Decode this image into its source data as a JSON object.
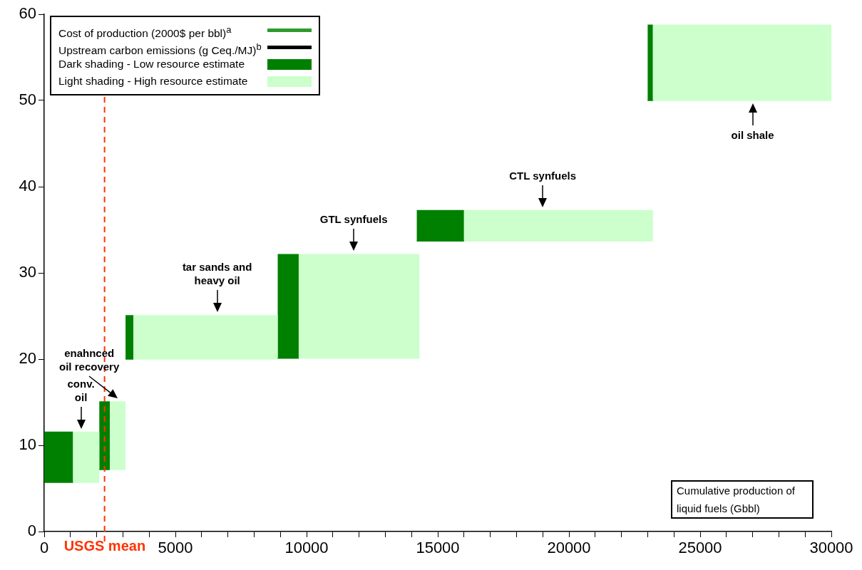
{
  "chart_data": {
    "type": "line",
    "xlabel": "Cumulative production of liquid fuels (Gbbl)",
    "xlim": [
      0,
      30000
    ],
    "xticks": [
      0,
      {
        "value": 1000,
        "label": null
      },
      {
        "value": 2000,
        "label": null
      },
      {
        "value": 3000,
        "label": null
      },
      {
        "value": 4000,
        "label": null
      },
      5000,
      {
        "value": 6000,
        "label": null
      },
      {
        "value": 7000,
        "label": null
      },
      {
        "value": 8000,
        "label": null
      },
      {
        "value": 9000,
        "label": null
      },
      10000,
      {
        "value": 11000,
        "label": null
      },
      {
        "value": 12000,
        "label": null
      },
      {
        "value": 13000,
        "label": null
      },
      {
        "value": 14000,
        "label": null
      },
      15000,
      {
        "value": 16000,
        "label": null
      },
      {
        "value": 17000,
        "label": null
      },
      {
        "value": 18000,
        "label": null
      },
      {
        "value": 19000,
        "label": null
      },
      20000,
      {
        "value": 21000,
        "label": null
      },
      {
        "value": 22000,
        "label": null
      },
      {
        "value": 23000,
        "label": null
      },
      {
        "value": 24000,
        "label": null
      },
      25000,
      {
        "value": 26000,
        "label": null
      },
      {
        "value": 27000,
        "label": null
      },
      {
        "value": 28000,
        "label": null
      },
      {
        "value": 29000,
        "label": null
      },
      30000
    ],
    "ylim": [
      0,
      60
    ],
    "yticks": [
      0,
      10,
      20,
      30,
      40,
      50,
      60
    ],
    "grid": false,
    "legend": "top left",
    "marker": "none",
    "series": [
      {
        "name": "Dark shading - Low  resource estimate",
        "color": "#008000",
        "x": [
          0,
          1100,
          null,
          2100,
          2500,
          null,
          3100,
          3400,
          null,
          8900,
          9700,
          null,
          14200,
          16000,
          null,
          23000,
          23200
        ],
        "values": [
          5.7,
          5.7,
          null,
          7.2,
          7.2,
          null,
          20.0,
          20.0,
          null,
          20.1,
          20.1,
          null,
          33.7,
          33.7,
          null,
          50.0,
          50.0
        ],
        "lower": [
          5.7,
          5.7,
          null,
          7.2,
          7.2,
          null,
          20.0,
          20.0,
          null,
          20.1,
          20.1,
          null,
          33.7,
          33.7,
          null,
          50.0,
          50.0
        ],
        "upper": [
          11.6,
          11.6,
          null,
          15.1,
          15.1,
          null,
          25.1,
          25.1,
          null,
          32.2,
          32.2,
          null,
          37.3,
          37.3,
          null,
          58.8,
          58.8
        ]
      },
      {
        "name": "Light shading - High resource estimate",
        "color": "#ccffcc",
        "x": [
          1100,
          2100,
          null,
          2500,
          3100,
          null,
          3400,
          8900,
          null,
          9700,
          14300,
          null,
          16000,
          23200,
          null,
          23200,
          30000
        ],
        "values": [
          5.7,
          5.7,
          null,
          7.2,
          7.2,
          null,
          20.0,
          20.0,
          null,
          20.1,
          20.1,
          null,
          33.7,
          33.7,
          null,
          50.0,
          50.0
        ],
        "lower": [
          5.7,
          5.7,
          null,
          7.2,
          7.2,
          null,
          20.0,
          20.0,
          null,
          20.1,
          20.1,
          null,
          33.7,
          33.7,
          null,
          50.0,
          50.0
        ],
        "upper": [
          11.6,
          11.6,
          null,
          15.1,
          15.1,
          null,
          25.1,
          25.1,
          null,
          32.2,
          32.2,
          null,
          37.3,
          37.3,
          null,
          58.8,
          58.8
        ]
      }
    ],
    "ref_lines": [
      {
        "axis": "x",
        "value": 2300,
        "label": "USGS mean",
        "color": "#ff3300",
        "line_style": "dashed"
      }
    ],
    "annotations": [
      {
        "text": "conv.\noil",
        "x": 1400,
        "y": 11.6
      },
      {
        "text": "enahnced\noil recovery",
        "x": 2800,
        "y": 15.1
      },
      {
        "text": "tar sands and\nheavy oil",
        "x": 6600,
        "y": 25.1
      },
      {
        "text": "GTL synfuels",
        "x": 11800,
        "y": 32.2
      },
      {
        "text": "CTL synfuels",
        "x": 19000,
        "y": 37.3
      },
      {
        "text": "oil shale",
        "x": 27000,
        "y": 50.0
      },
      "Cost of production  (2000$ per bbl)$^{a}$",
      "Upstream carbon emissions  (g Ceq./MJ)$^{b}$"
    ]
  }
}
